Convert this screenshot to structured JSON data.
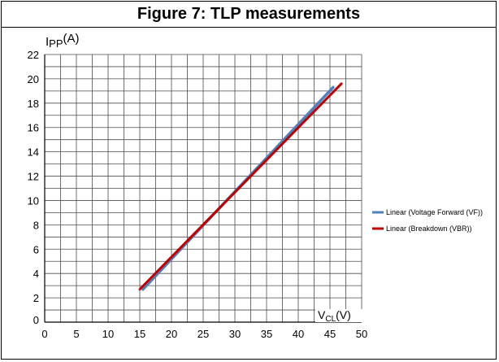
{
  "chart_data": {
    "type": "line",
    "title": "Figure 7: TLP measurements",
    "ylabel": {
      "main": "I",
      "sub": "PP",
      "unit": "(A)"
    },
    "xlabel": {
      "main": "V",
      "sub": "CL",
      "unit": "(V)"
    },
    "xlim": [
      0,
      50
    ],
    "ylim": [
      0,
      22
    ],
    "x_ticks": [
      0,
      5,
      10,
      15,
      20,
      25,
      30,
      35,
      40,
      45,
      50
    ],
    "y_ticks": [
      0,
      2,
      4,
      6,
      8,
      10,
      12,
      14,
      16,
      18,
      20,
      22
    ],
    "x_minor_step": 2.5,
    "y_minor_step": 1,
    "grid": true,
    "legend_position": "right",
    "series": [
      {
        "name": "Linear (Voltage Forward (VF))",
        "color": "#4f81bd",
        "x": [
          15.5,
          45.5
        ],
        "y": [
          2.7,
          19.3
        ]
      },
      {
        "name": "Linear (Breakdown (VBR))",
        "color": "#c00000",
        "x": [
          15.0,
          46.8
        ],
        "y": [
          2.7,
          19.6
        ]
      }
    ]
  }
}
